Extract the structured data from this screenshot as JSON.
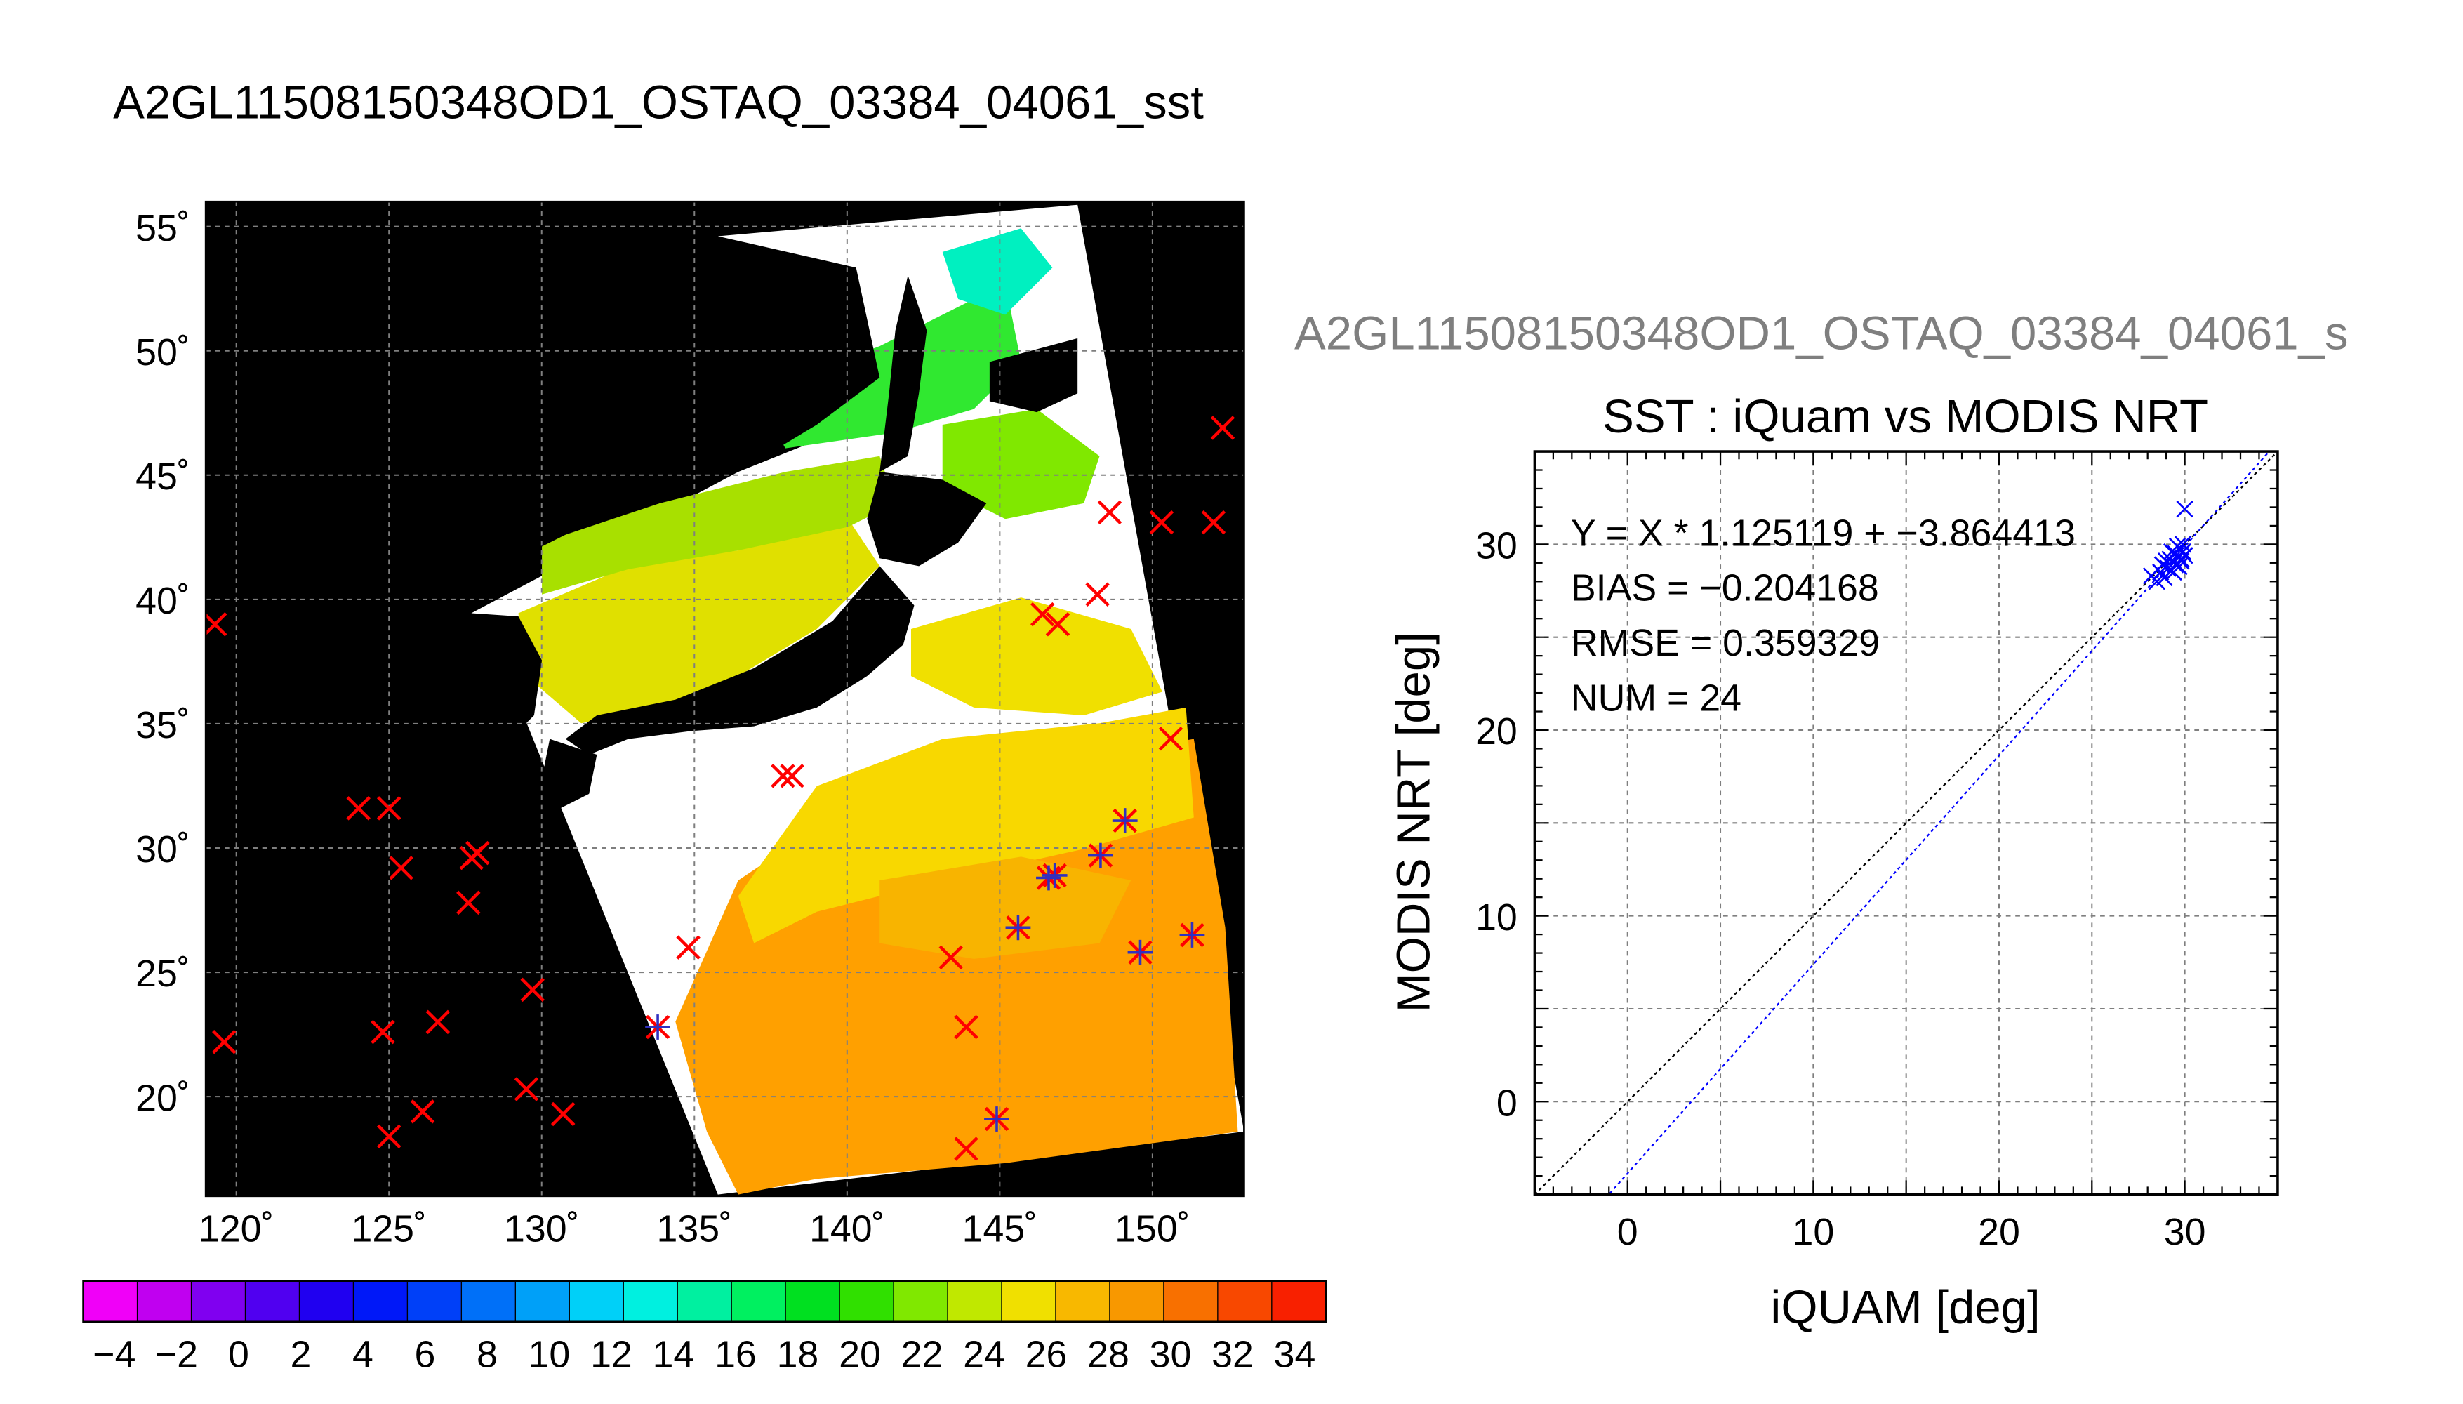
{
  "figure": {
    "main_title": "A2GL11508150348OD1_OSTAQ_03384_04061_sst",
    "overflow_title": "A2GL11508150348OD1_OSTAQ_03384_04061_s"
  },
  "chart_data": [
    {
      "type": "map",
      "lon_range": [
        119,
        153
      ],
      "lat_range": [
        16,
        56
      ],
      "lon_ticks": [
        "120˚",
        "125˚",
        "130˚",
        "135˚",
        "140˚",
        "145˚",
        "150˚"
      ],
      "lat_ticks": [
        "55˚",
        "50˚",
        "45˚",
        "40˚",
        "35˚",
        "30˚",
        "25˚",
        "20˚"
      ],
      "grid": true,
      "colorbar": {
        "range": [
          -5,
          35
        ],
        "tick_labels": [
          "−4",
          "−2",
          "0",
          "2",
          "4",
          "6",
          "8",
          "10",
          "12",
          "14",
          "16",
          "18",
          "20",
          "22",
          "24",
          "26",
          "28",
          "30",
          "32",
          "34"
        ],
        "colors": [
          "#f000f8",
          "#c000f0",
          "#8000f0",
          "#5000f0",
          "#2000f0",
          "#0018f8",
          "#0040f8",
          "#0070f8",
          "#00a0f8",
          "#00d0f8",
          "#00f0e0",
          "#00f0a0",
          "#00f060",
          "#00e020",
          "#30e000",
          "#80e800",
          "#c0e800",
          "#f0e000",
          "#f8b800",
          "#f89800",
          "#f87000",
          "#f84800",
          "#f82000"
        ]
      },
      "stations_lonlat": [
        [
          119.3,
          39.0
        ],
        [
          119.6,
          22.2
        ],
        [
          124.0,
          31.6
        ],
        [
          125.0,
          31.6
        ],
        [
          125.4,
          29.2
        ],
        [
          127.7,
          29.6
        ],
        [
          127.9,
          29.8
        ],
        [
          127.6,
          27.8
        ],
        [
          129.7,
          24.3
        ],
        [
          126.6,
          23.0
        ],
        [
          124.8,
          22.6
        ],
        [
          125.0,
          18.4
        ],
        [
          126.1,
          19.4
        ],
        [
          129.5,
          20.3
        ],
        [
          130.7,
          19.3
        ],
        [
          133.8,
          22.8
        ],
        [
          134.8,
          26.0
        ],
        [
          137.9,
          32.9
        ],
        [
          138.2,
          32.9
        ],
        [
          143.4,
          25.6
        ],
        [
          143.9,
          22.8
        ],
        [
          143.9,
          17.9
        ],
        [
          144.9,
          19.1
        ],
        [
          145.6,
          26.8
        ],
        [
          146.6,
          28.8
        ],
        [
          146.8,
          28.9
        ],
        [
          148.3,
          29.7
        ],
        [
          149.1,
          31.1
        ],
        [
          149.6,
          25.8
        ],
        [
          151.3,
          26.5
        ],
        [
          146.4,
          39.4
        ],
        [
          146.9,
          39.0
        ],
        [
          148.2,
          40.2
        ],
        [
          148.6,
          43.5
        ],
        [
          150.3,
          43.1
        ],
        [
          150.6,
          34.4
        ],
        [
          152.0,
          43.1
        ],
        [
          152.3,
          46.9
        ]
      ],
      "matched_stations_lonlat": [
        [
          133.8,
          22.8
        ],
        [
          144.9,
          19.1
        ],
        [
          145.6,
          26.8
        ],
        [
          146.6,
          28.8
        ],
        [
          146.8,
          28.9
        ],
        [
          148.3,
          29.7
        ],
        [
          149.1,
          31.1
        ],
        [
          149.6,
          25.8
        ],
        [
          151.3,
          26.5
        ]
      ]
    },
    {
      "type": "scatter",
      "title": "SST : iQuam vs MODIS NRT",
      "xlabel": "iQUAM [deg]",
      "ylabel": "MODIS NRT [deg]",
      "xlim": [
        -5,
        35
      ],
      "ylim": [
        -5,
        35
      ],
      "x_ticks": [
        "0",
        "10",
        "20",
        "30"
      ],
      "y_ticks": [
        "0",
        "10",
        "20",
        "30"
      ],
      "grid": true,
      "fit": {
        "slope": 1.125119,
        "intercept": -3.864413
      },
      "annotations": [
        "Y = X * 1.125119 + −3.864413",
        "BIAS = −0.204168",
        "RMSE = 0.359329",
        "NUM = 24"
      ],
      "points": [
        [
          28.2,
          28.3
        ],
        [
          28.5,
          28.0
        ],
        [
          28.7,
          28.5
        ],
        [
          28.8,
          28.9
        ],
        [
          28.9,
          28.2
        ],
        [
          29.0,
          29.1
        ],
        [
          29.1,
          28.7
        ],
        [
          29.2,
          29.2
        ],
        [
          29.3,
          28.6
        ],
        [
          29.4,
          29.0
        ],
        [
          29.5,
          29.5
        ],
        [
          29.5,
          28.9
        ],
        [
          29.6,
          29.3
        ],
        [
          29.7,
          29.8
        ],
        [
          29.7,
          28.8
        ],
        [
          29.8,
          29.1
        ],
        [
          29.9,
          29.6
        ],
        [
          29.9,
          30.0
        ],
        [
          30.0,
          29.4
        ],
        [
          30.0,
          31.9
        ],
        [
          29.6,
          29.9
        ],
        [
          29.3,
          29.6
        ],
        [
          29.8,
          29.2
        ],
        [
          29.4,
          28.5
        ]
      ]
    }
  ]
}
